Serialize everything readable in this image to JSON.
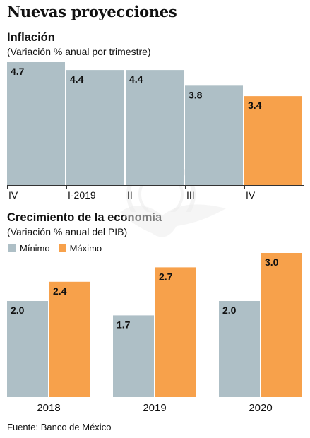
{
  "title": "Nuevas proyecciones",
  "source": "Fuente: Banco de México",
  "colors": {
    "minimo": "#aebfc6",
    "maximo": "#f7a14b",
    "axis": "#333333",
    "watermark": "#ececec"
  },
  "legend": {
    "items": [
      {
        "label": "Mínimo",
        "color": "#aebfc6"
      },
      {
        "label": "Máximo",
        "color": "#f7a14b"
      }
    ]
  },
  "chart_data": [
    {
      "type": "bar",
      "title": "Inflación",
      "subtitle": "(Variación % anual por trimestre)",
      "categories": [
        "IV",
        "I-2019",
        "II",
        "III",
        "IV"
      ],
      "values": [
        4.7,
        4.4,
        4.4,
        3.8,
        3.4
      ],
      "value_labels": [
        "4.7",
        "4.4",
        "4.4",
        "3.8",
        "3.4"
      ],
      "bar_colors": [
        "#aebfc6",
        "#aebfc6",
        "#aebfc6",
        "#aebfc6",
        "#f7a14b"
      ],
      "ylim": [
        0,
        4.7
      ],
      "grid": false
    },
    {
      "type": "bar",
      "title": "Crecimiento de la economía",
      "subtitle": "(Variación % anual del PIB)",
      "categories": [
        "2018",
        "2019",
        "2020"
      ],
      "series": [
        {
          "name": "Mínimo",
          "values": [
            2.0,
            1.7,
            2.0
          ],
          "value_labels": [
            "2.0",
            "1.7",
            "2.0"
          ],
          "color": "#aebfc6"
        },
        {
          "name": "Máximo",
          "values": [
            2.4,
            2.7,
            3.0
          ],
          "value_labels": [
            "2.4",
            "2.7",
            "3.0"
          ],
          "color": "#f7a14b"
        }
      ],
      "ylim": [
        0,
        3.0
      ],
      "legend": "top-left",
      "grid": false
    }
  ]
}
